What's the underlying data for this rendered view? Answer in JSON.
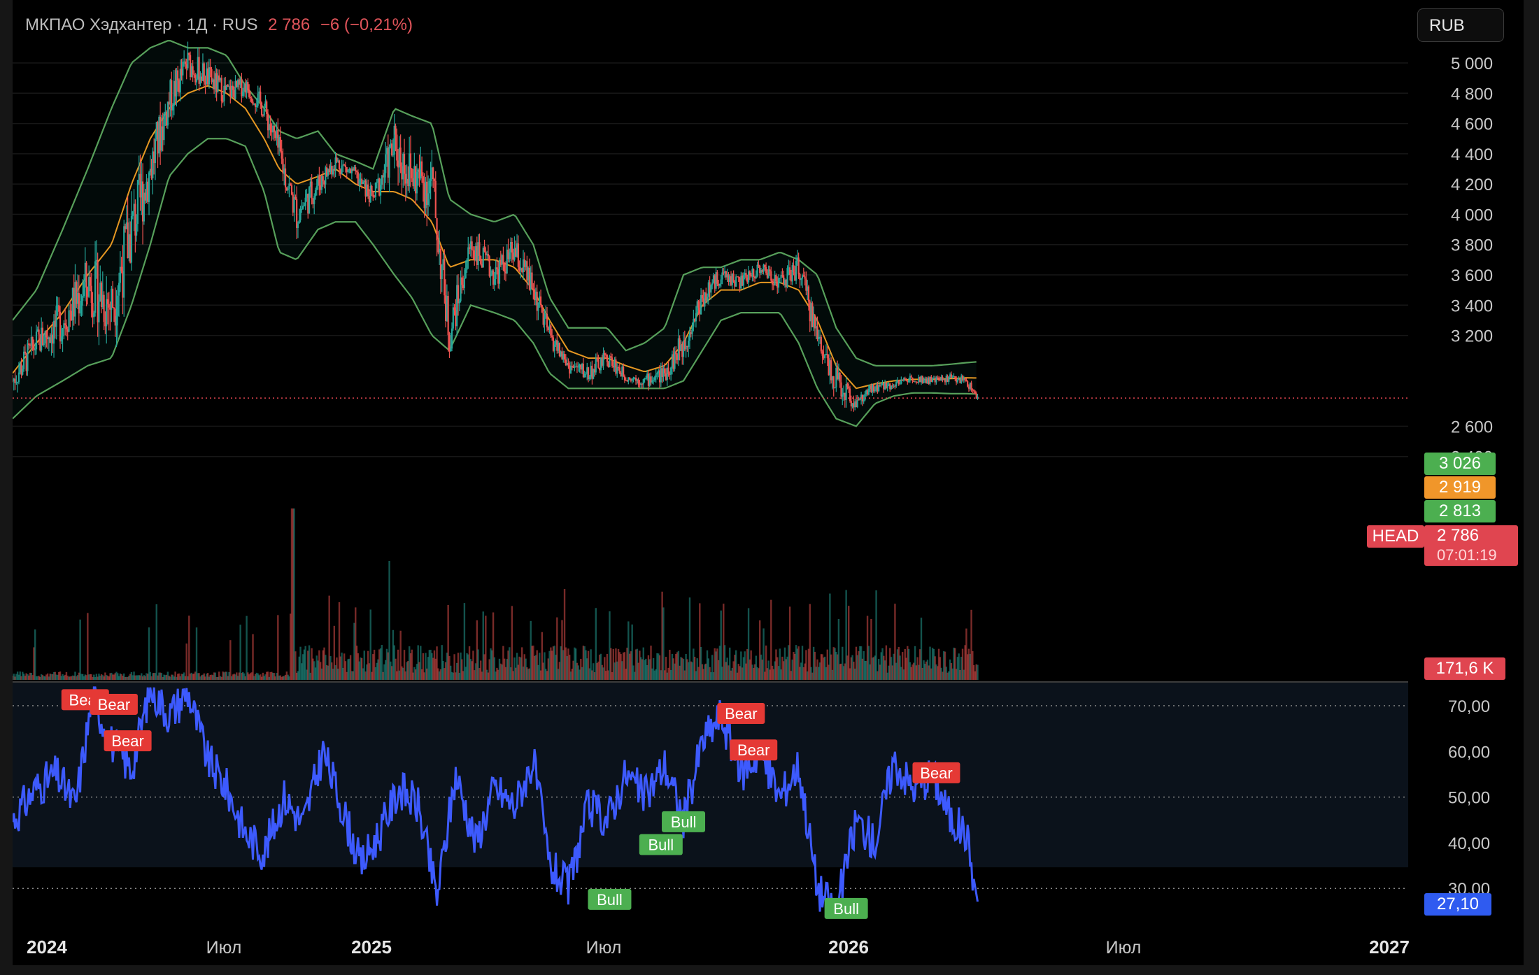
{
  "header": {
    "symbol_line": "МКПАО Хэдхантер · 1Д · RUS",
    "last": "2 786",
    "change": "−6 (−0,21%)"
  },
  "currency_button": "RUB",
  "colors": {
    "up": "#26a69a",
    "down": "#ef5350",
    "bb_band": "#66bb6a",
    "bb_basis": "#ffa726",
    "rsi": "#3d5afe",
    "bull": "#4caf50",
    "bear": "#e53935"
  },
  "price_axis": {
    "ticks": [
      "5 000",
      "4 800",
      "4 600",
      "4 400",
      "4 200",
      "4 000",
      "3 800",
      "3 600",
      "3 400",
      "3 200",
      "2 600",
      "2 400"
    ],
    "tick_values": [
      5000,
      4800,
      4600,
      4400,
      4200,
      4000,
      3800,
      3600,
      3400,
      3200,
      2600,
      2400
    ]
  },
  "price_tags": {
    "bb_upper": {
      "label": "3 026",
      "value": 3026
    },
    "bb_basis": {
      "label": "2 919",
      "value": 2919
    },
    "bb_lower": {
      "label": "2 813",
      "value": 2813
    },
    "last": {
      "label": "2 786",
      "value": 2786,
      "countdown": "07:01:19",
      "name": "HEAD"
    },
    "volume": {
      "label": "171,6 K"
    }
  },
  "rsi_axis": {
    "ticks": [
      "70,00",
      "60,00",
      "50,00",
      "40,00",
      "30,00"
    ],
    "tick_values": [
      70,
      60,
      50,
      40,
      30
    ],
    "current": {
      "label": "27,10",
      "value": 27.1
    }
  },
  "time_axis": {
    "labels": [
      {
        "text": "2024",
        "bold": true
      },
      {
        "text": "Июл",
        "bold": false
      },
      {
        "text": "2025",
        "bold": true
      },
      {
        "text": "Июл",
        "bold": false
      },
      {
        "text": "2026",
        "bold": true
      },
      {
        "text": "Июл",
        "bold": false
      },
      {
        "text": "2027",
        "bold": true
      }
    ]
  },
  "chart_data": {
    "type": "line",
    "x_range": [
      "2024-01-01",
      "2027-01-20"
    ],
    "price": {
      "dates": [
        "2024-01-01",
        "2024-01-20",
        "2024-02-10",
        "2024-03-01",
        "2024-03-20",
        "2024-04-05",
        "2024-04-20",
        "2024-05-05",
        "2024-05-20",
        "2024-06-05",
        "2024-06-20",
        "2024-07-05",
        "2024-07-20",
        "2024-08-01",
        "2024-08-15",
        "2024-09-01",
        "2024-09-15",
        "2024-10-01",
        "2024-10-15",
        "2024-11-01",
        "2024-11-15",
        "2024-12-01",
        "2024-12-15",
        "2025-01-01",
        "2025-01-20",
        "2025-02-05",
        "2025-02-20",
        "2025-03-05",
        "2025-03-20",
        "2025-04-05",
        "2025-04-20",
        "2025-05-05",
        "2025-05-20",
        "2025-06-05",
        "2025-06-20",
        "2025-07-05",
        "2025-07-20",
        "2025-08-05",
        "2025-08-20",
        "2025-09-05",
        "2025-09-20",
        "2025-10-05",
        "2025-10-20",
        "2025-11-05",
        "2025-11-20",
        "2025-12-05",
        "2025-12-20",
        "2026-01-05",
        "2026-01-20",
        "2026-02-01",
        "2026-02-10"
      ],
      "close": [
        2900,
        3150,
        3300,
        3550,
        3400,
        3900,
        4300,
        4750,
        5000,
        4900,
        4800,
        4850,
        4700,
        4400,
        4000,
        4200,
        4350,
        4250,
        4100,
        4450,
        4250,
        4200,
        3200,
        3800,
        3600,
        3750,
        3500,
        3200,
        3000,
        2950,
        3050,
        2930,
        2900,
        2950,
        3150,
        3450,
        3600,
        3550,
        3650,
        3550,
        3650,
        3200,
        2900,
        2750,
        2850,
        2880,
        2920,
        2900,
        2920,
        2900,
        2786
      ],
      "bb_upper": [
        3300,
        3500,
        3900,
        4300,
        4700,
        5000,
        5100,
        5150,
        5100,
        5100,
        5050,
        4850,
        4700,
        4550,
        4500,
        4550,
        4400,
        4350,
        4300,
        4700,
        4650,
        4600,
        4100,
        4000,
        3950,
        4000,
        3800,
        3450,
        3250,
        3250,
        3250,
        3100,
        3150,
        3250,
        3600,
        3650,
        3650,
        3700,
        3700,
        3750,
        3700,
        3600,
        3250,
        3050,
        3000,
        3000,
        3000,
        3000,
        3010,
        3020,
        3026
      ],
      "bb_basis": [
        2950,
        3150,
        3350,
        3600,
        3800,
        4200,
        4500,
        4700,
        4800,
        4850,
        4800,
        4700,
        4500,
        4300,
        4200,
        4250,
        4300,
        4200,
        4150,
        4150,
        4100,
        3950,
        3650,
        3700,
        3700,
        3650,
        3500,
        3300,
        3100,
        3050,
        3050,
        3000,
        2960,
        3000,
        3150,
        3400,
        3500,
        3500,
        3550,
        3550,
        3500,
        3300,
        3000,
        2850,
        2880,
        2900,
        2910,
        2910,
        2915,
        2920,
        2919
      ],
      "bb_lower": [
        2650,
        2800,
        2900,
        3000,
        3050,
        3400,
        3800,
        4250,
        4400,
        4500,
        4500,
        4450,
        4150,
        3750,
        3700,
        3900,
        3950,
        3950,
        3800,
        3600,
        3450,
        3200,
        3100,
        3400,
        3350,
        3300,
        3150,
        2950,
        2850,
        2850,
        2850,
        2850,
        2850,
        2850,
        2900,
        3100,
        3300,
        3350,
        3350,
        3350,
        3150,
        2850,
        2650,
        2600,
        2750,
        2800,
        2820,
        2820,
        2815,
        2815,
        2813
      ]
    },
    "rsi": {
      "dates": [
        "2024-01-01",
        "2024-01-20",
        "2024-02-05",
        "2024-02-20",
        "2024-03-05",
        "2024-03-20",
        "2024-04-05",
        "2024-04-20",
        "2024-05-05",
        "2024-05-20",
        "2024-06-05",
        "2024-06-20",
        "2024-07-05",
        "2024-07-20",
        "2024-08-05",
        "2024-08-20",
        "2024-09-05",
        "2024-09-20",
        "2024-10-05",
        "2024-10-20",
        "2024-11-05",
        "2024-11-20",
        "2024-12-05",
        "2024-12-20",
        "2025-01-05",
        "2025-01-20",
        "2025-02-05",
        "2025-02-20",
        "2025-03-05",
        "2025-03-20",
        "2025-04-05",
        "2025-04-20",
        "2025-05-05",
        "2025-05-20",
        "2025-06-05",
        "2025-06-20",
        "2025-07-05",
        "2025-07-20",
        "2025-08-05",
        "2025-08-20",
        "2025-09-05",
        "2025-09-20",
        "2025-10-05",
        "2025-10-20",
        "2025-11-05",
        "2025-11-20",
        "2025-12-05",
        "2025-12-20",
        "2026-01-05",
        "2026-01-20",
        "2026-02-01",
        "2026-02-10"
      ],
      "values": [
        45,
        52,
        55,
        48,
        72,
        62,
        56,
        74,
        68,
        73,
        58,
        52,
        42,
        38,
        50,
        44,
        60,
        48,
        35,
        42,
        52,
        48,
        28,
        55,
        40,
        52,
        48,
        58,
        35,
        30,
        48,
        45,
        55,
        50,
        57,
        45,
        62,
        68,
        55,
        60,
        50,
        57,
        30,
        25,
        45,
        40,
        58,
        52,
        55,
        45,
        42,
        27.1
      ],
      "ylim": [
        25,
        75
      ],
      "signals": [
        {
          "type": "Bear",
          "date": "2024-02-28",
          "value": 73
        },
        {
          "type": "Bear",
          "date": "2024-03-22",
          "value": 72
        },
        {
          "type": "Bear",
          "date": "2024-04-02",
          "value": 64
        },
        {
          "type": "Bear",
          "date": "2025-08-05",
          "value": 70
        },
        {
          "type": "Bear",
          "date": "2025-08-15",
          "value": 62
        },
        {
          "type": "Bear",
          "date": "2026-01-08",
          "value": 57
        },
        {
          "type": "Bull",
          "date": "2025-04-22",
          "value": 25
        },
        {
          "type": "Bull",
          "date": "2025-06-02",
          "value": 37
        },
        {
          "type": "Bull",
          "date": "2025-06-20",
          "value": 42
        },
        {
          "type": "Bull",
          "date": "2025-10-28",
          "value": 23
        }
      ]
    }
  }
}
